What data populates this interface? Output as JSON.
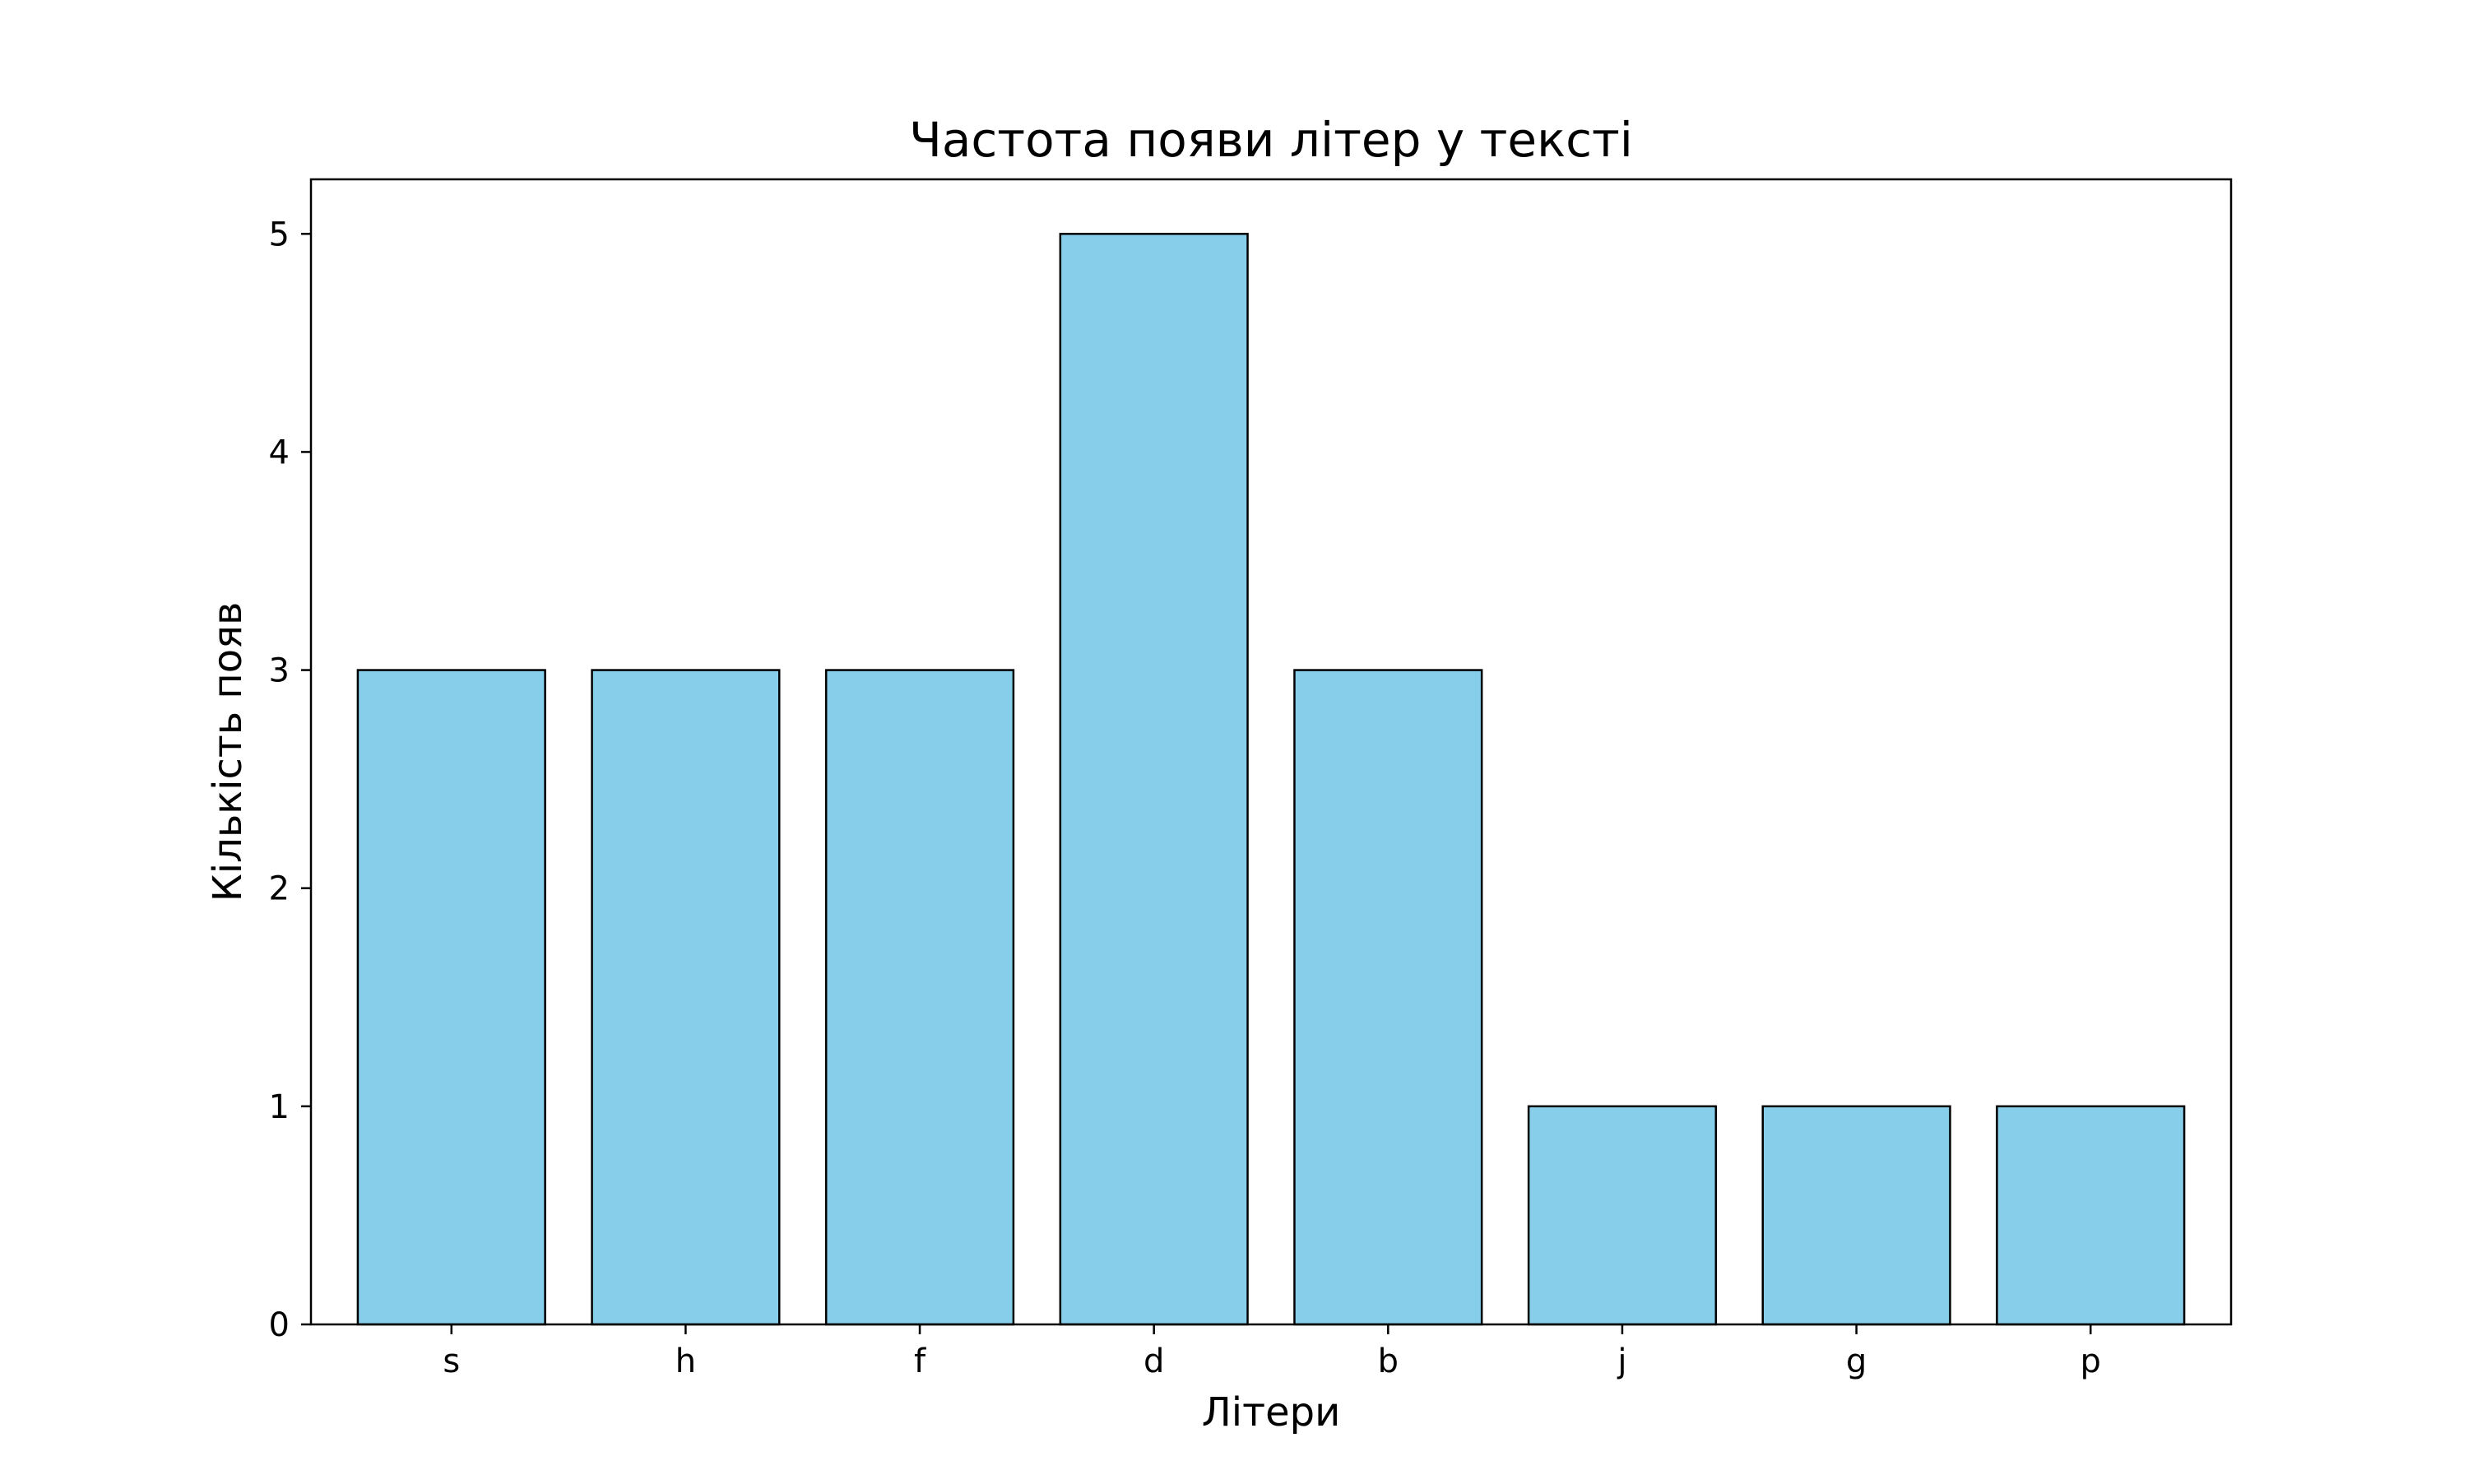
{
  "colors": {
    "bar_fill": "#87CEEB",
    "bar_edge": "#000000",
    "axes": "#000000",
    "background": "#ffffff"
  },
  "chart_data": {
    "type": "bar",
    "title": "Частота появи літер у тексті",
    "xlabel": "Літери",
    "ylabel": "Кількість появ",
    "categories": [
      "s",
      "h",
      "f",
      "d",
      "b",
      "j",
      "g",
      "p"
    ],
    "values": [
      3,
      3,
      3,
      5,
      3,
      1,
      1,
      1
    ],
    "ylim": [
      0,
      5.25
    ],
    "yticks": [
      0,
      1,
      2,
      3,
      4,
      5
    ],
    "grid": false,
    "legend": "none"
  }
}
